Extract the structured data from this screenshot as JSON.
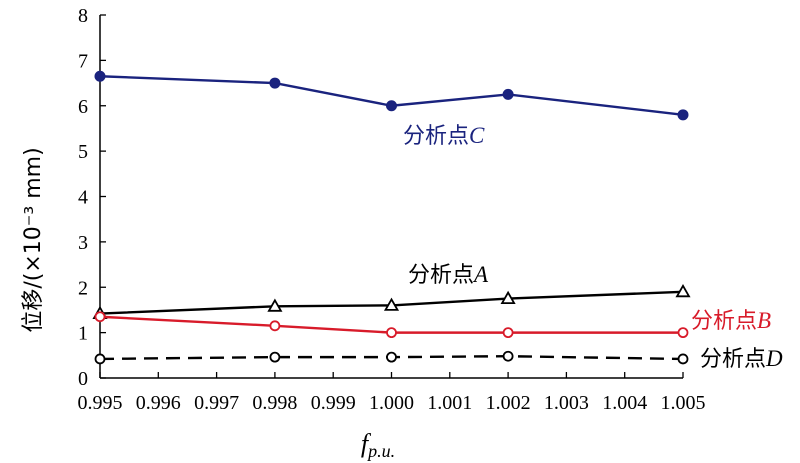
{
  "chart_data": {
    "type": "line",
    "x": [
      0.995,
      0.998,
      1.0,
      1.002,
      1.005
    ],
    "xlim": [
      0.995,
      1.005
    ],
    "ylim": [
      0,
      8
    ],
    "x_ticks": [
      "0.995",
      "0.996",
      "0.997",
      "0.998",
      "0.999",
      "1.000",
      "1.001",
      "1.002",
      "1.003",
      "1.004",
      "1.005"
    ],
    "y_ticks": [
      "0",
      "1",
      "2",
      "3",
      "4",
      "5",
      "6",
      "7",
      "8"
    ],
    "xlabel": {
      "main": "f",
      "sub": "p.u."
    },
    "ylabel": "位移/(×10⁻³ mm)",
    "grid": false,
    "series": [
      {
        "name": {
          "prefix": "分析点",
          "letter": "C"
        },
        "values": [
          6.65,
          6.5,
          6.0,
          6.25,
          5.8
        ],
        "color": "#1a237e",
        "marker": "filled-circle",
        "dash": "solid"
      },
      {
        "name": {
          "prefix": "分析点",
          "letter": "A"
        },
        "values": [
          1.42,
          1.58,
          1.6,
          1.75,
          1.9
        ],
        "color": "#000000",
        "marker": "triangle",
        "dash": "solid"
      },
      {
        "name": {
          "prefix": "分析点",
          "letter": "B"
        },
        "values": [
          1.35,
          1.15,
          1.0,
          1.0,
          1.0
        ],
        "color": "#d81b2a",
        "marker": "open-circle",
        "dash": "solid"
      },
      {
        "name": {
          "prefix": "分析点",
          "letter": "D"
        },
        "values": [
          0.42,
          0.46,
          0.46,
          0.48,
          0.42
        ],
        "color": "#000000",
        "marker": "open-circle",
        "dash": "dashed"
      }
    ]
  }
}
